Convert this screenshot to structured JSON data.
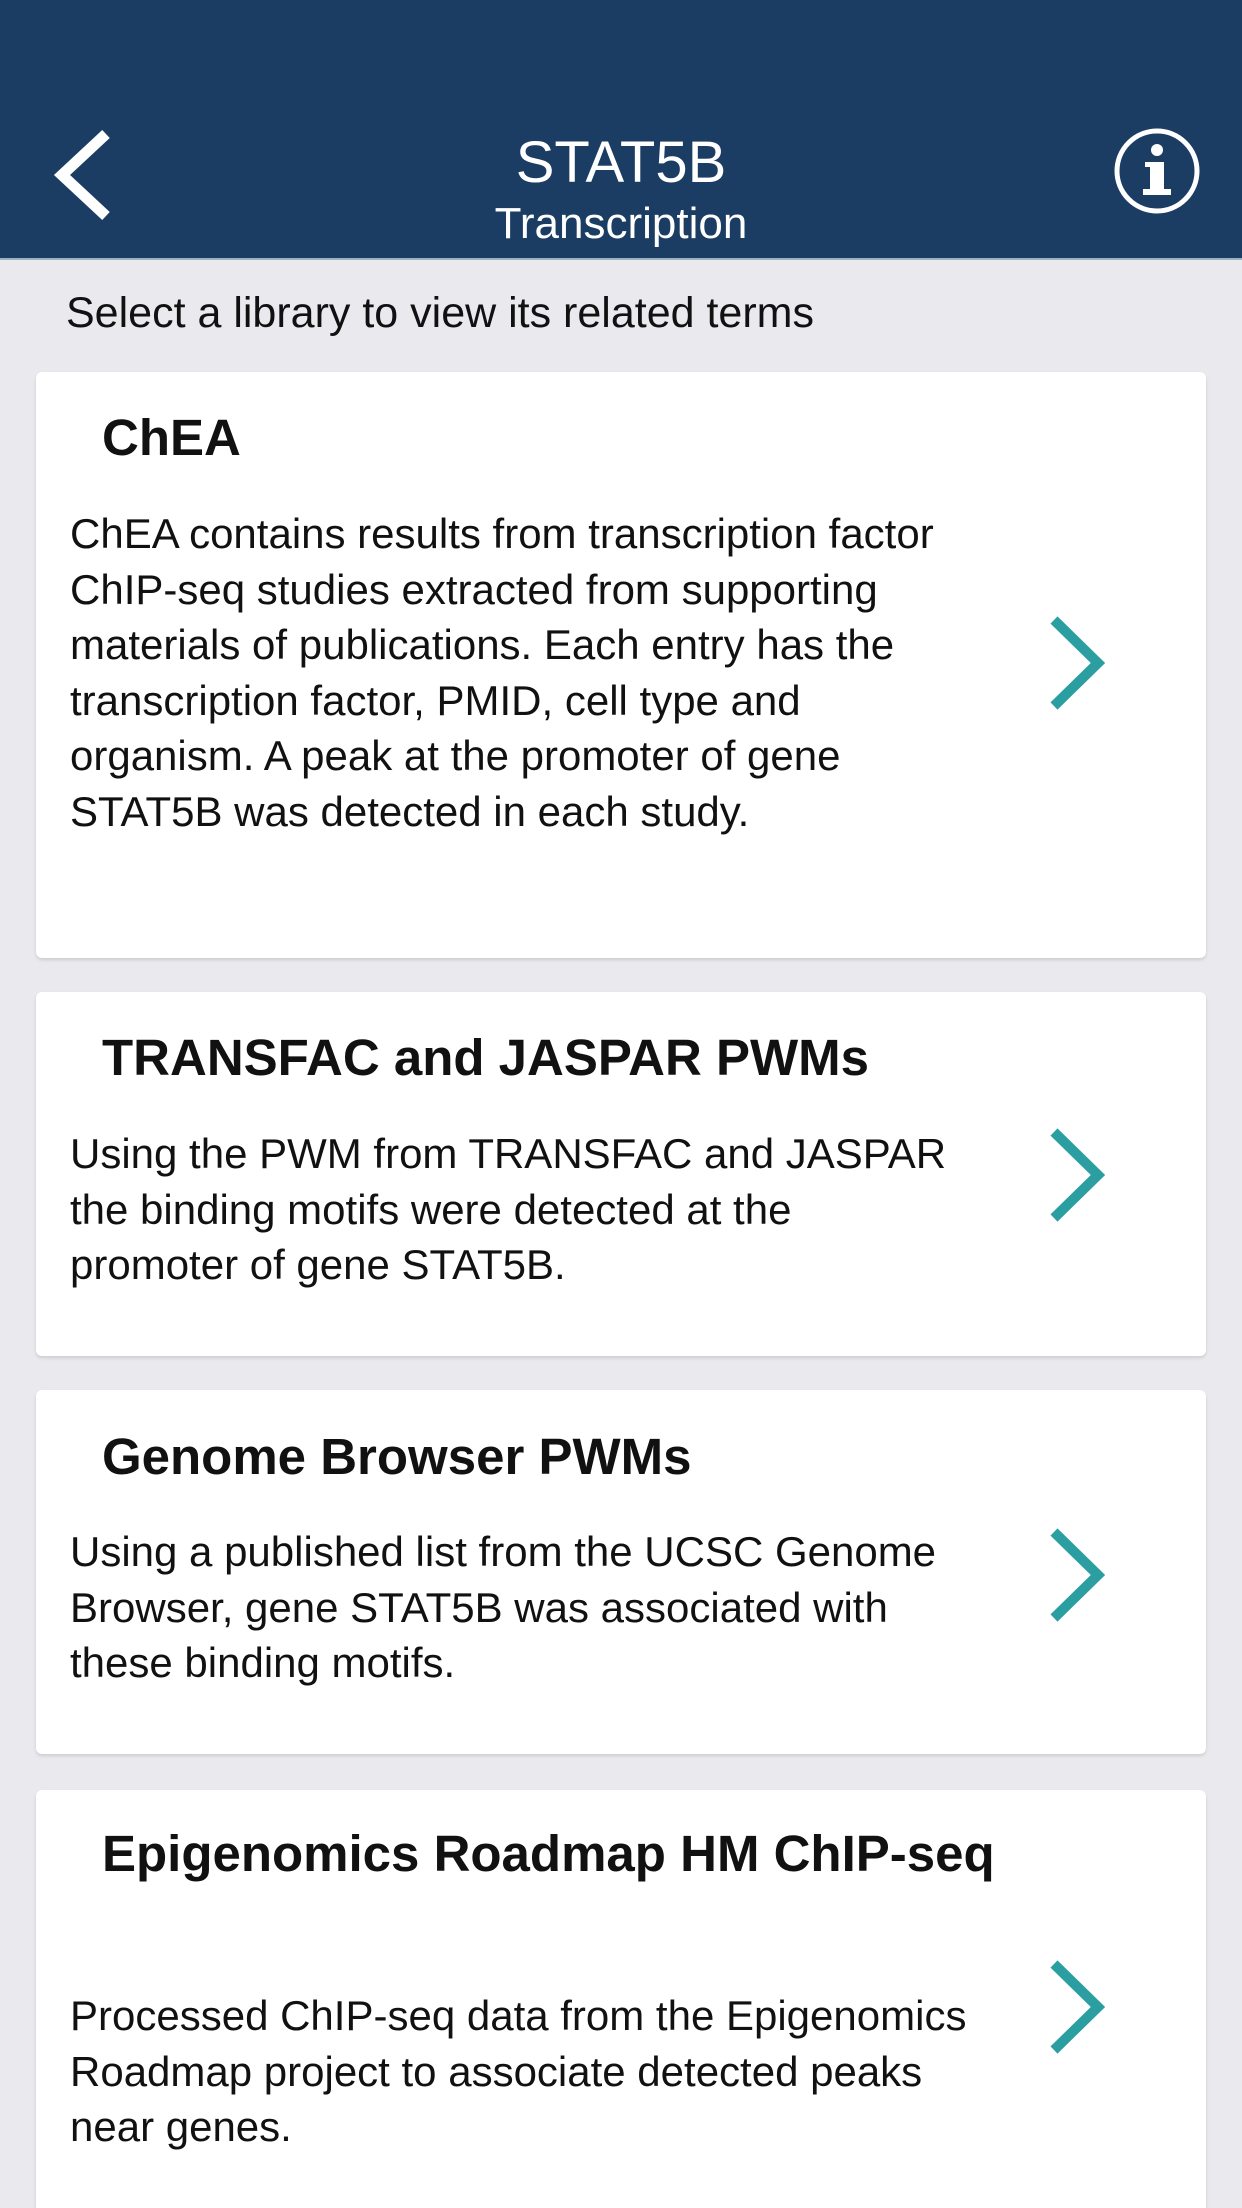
{
  "header": {
    "title": "STAT5B",
    "subtitle": "Transcription",
    "back_icon": "chevron-left-icon",
    "info_icon": "info-icon",
    "background_color": "#1b3d63"
  },
  "instruction": "Select a library to view its related terms",
  "accent_color": "#2a9ea0",
  "libraries": [
    {
      "title": "ChEA",
      "description": "ChEA contains results from transcription factor ChIP-seq studies extracted from supporting materials of publications. Each entry has the transcription factor, PMID, cell type and organism. A peak at the promoter of gene STAT5B was detected in each study."
    },
    {
      "title": "TRANSFAC and JASPAR PWMs",
      "description": "Using the PWM from TRANSFAC and JASPAR the binding motifs were detected at the promoter of gene STAT5B."
    },
    {
      "title": "Genome Browser PWMs",
      "description": "Using a published list from the UCSC Genome Browser, gene STAT5B was associated with these binding motifs."
    },
    {
      "title": "Epigenomics Roadmap HM ChIP-seq",
      "description": "Processed ChIP-seq data from the Epigenomics Roadmap project to associate detected peaks near genes."
    }
  ]
}
